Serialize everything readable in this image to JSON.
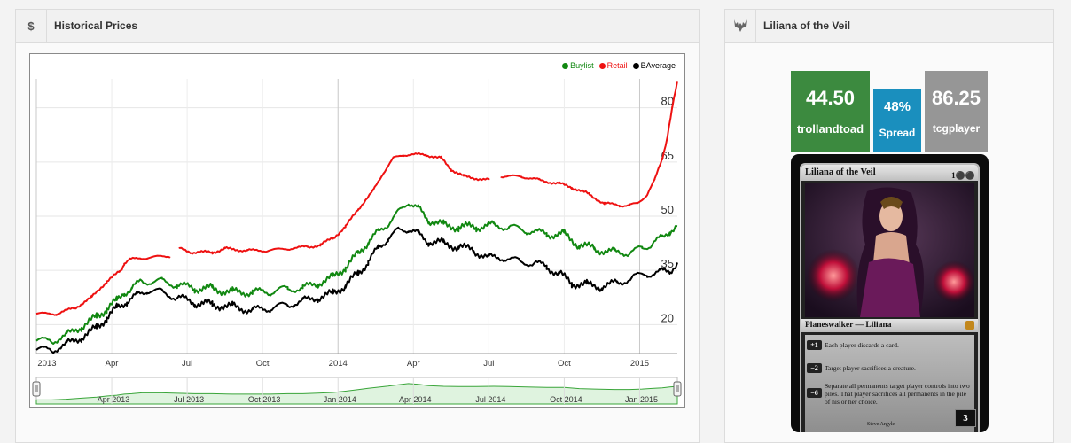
{
  "left_panel": {
    "icon": "$",
    "title": "Historical Prices"
  },
  "right_panel": {
    "title": "Liliana of the Veil",
    "icon": "wolf-head-icon"
  },
  "prices": {
    "buylist": {
      "value": "44.50",
      "label": "trollandtoad",
      "color": "#3c8a3f"
    },
    "spread": {
      "value": "48%",
      "label": "Spread",
      "color": "#1a8fbe"
    },
    "retail": {
      "value": "86.25",
      "label": "tcgplayer",
      "color": "#969696"
    }
  },
  "card": {
    "name": "Liliana of the Veil",
    "mana_cost": "1⚫⚫",
    "type_line": "Planeswalker — Liliana",
    "abilities": [
      {
        "cost": "+1",
        "text": "Each player discards a card."
      },
      {
        "cost": "−2",
        "text": "Target player sacrifices a creature."
      },
      {
        "cost": "−6",
        "text": "Separate all permanents target player controls into two piles. That player sacrifices all permanents in the pile of his or her choice."
      }
    ],
    "artist": "Steve Argyle",
    "loyalty": "3"
  },
  "chart_data": {
    "type": "line",
    "legend": [
      "Buylist",
      "Retail",
      "BAverage"
    ],
    "legend_placement": "top-right",
    "colors": {
      "Buylist": "#118811",
      "Retail": "#ee1111",
      "BAverage": "#000000"
    },
    "x_ticks": [
      "2013",
      "Apr",
      "Jul",
      "Oct",
      "2014",
      "Apr",
      "Jul",
      "Oct",
      "2015"
    ],
    "y_ticks": [
      20,
      35,
      50,
      65,
      80
    ],
    "ylim": [
      12,
      88
    ],
    "navigator_ticks": [
      "Apr 2013",
      "Jul 2013",
      "Oct 2013",
      "Jan 2014",
      "Apr 2014",
      "Jul 2014",
      "Oct 2014",
      "Jan 2015"
    ],
    "x_month_range": [
      0,
      25.5
    ],
    "series": [
      {
        "name": "Retail",
        "gaps": [
          [
            5.3,
            5.7
          ],
          [
            18.0,
            18.5
          ]
        ],
        "points": [
          [
            0,
            23
          ],
          [
            0.8,
            23
          ],
          [
            1.5,
            24.5
          ],
          [
            2.2,
            27.5
          ],
          [
            2.8,
            32
          ],
          [
            3.3,
            34.5
          ],
          [
            3.4,
            35.5
          ],
          [
            3.5,
            37
          ],
          [
            3.7,
            38
          ],
          [
            4.4,
            38.5
          ],
          [
            5.3,
            39
          ],
          [
            5.7,
            41
          ],
          [
            6.2,
            40
          ],
          [
            7,
            40
          ],
          [
            7.5,
            41
          ],
          [
            8.4,
            40.5
          ],
          [
            9.2,
            40.5
          ],
          [
            10,
            41
          ],
          [
            10.8,
            41.5
          ],
          [
            11.3,
            42
          ],
          [
            11.8,
            44
          ],
          [
            12.3,
            47
          ],
          [
            12.8,
            52
          ],
          [
            13.4,
            57
          ],
          [
            13.8,
            62
          ],
          [
            14.2,
            66
          ],
          [
            14.6,
            67
          ],
          [
            15.5,
            67
          ],
          [
            16.1,
            66
          ],
          [
            16.5,
            63
          ],
          [
            17,
            61
          ],
          [
            18,
            60
          ],
          [
            18.5,
            61
          ],
          [
            19.3,
            61
          ],
          [
            20,
            60
          ],
          [
            20.8,
            59
          ],
          [
            21.3,
            58
          ],
          [
            22,
            56
          ],
          [
            22.6,
            53.5
          ],
          [
            23.2,
            53
          ],
          [
            23.6,
            53
          ],
          [
            23.9,
            53.5
          ],
          [
            24.3,
            56
          ],
          [
            24.6,
            60
          ],
          [
            24.9,
            66
          ],
          [
            25.1,
            72
          ],
          [
            25.3,
            80
          ],
          [
            25.5,
            87
          ]
        ]
      },
      {
        "name": "Buylist",
        "points": [
          [
            0,
            15.5
          ],
          [
            0.6,
            15.5
          ],
          [
            1.2,
            17
          ],
          [
            1.8,
            19.5
          ],
          [
            2.4,
            22
          ],
          [
            2.8,
            24.5
          ],
          [
            3.2,
            26.5
          ],
          [
            3.5,
            29
          ],
          [
            3.8,
            30
          ],
          [
            4.2,
            32
          ],
          [
            5,
            32
          ],
          [
            5.6,
            31
          ],
          [
            6.3,
            30
          ],
          [
            7,
            30
          ],
          [
            7.8,
            29
          ],
          [
            8.6,
            29
          ],
          [
            9.3,
            29
          ],
          [
            10,
            30
          ],
          [
            10.6,
            30
          ],
          [
            11.2,
            31.5
          ],
          [
            11.8,
            33
          ],
          [
            12.3,
            36
          ],
          [
            12.8,
            39.5
          ],
          [
            13.2,
            43
          ],
          [
            13.6,
            45.5
          ],
          [
            14,
            48
          ],
          [
            14.4,
            51
          ],
          [
            14.8,
            54
          ],
          [
            15.2,
            52
          ],
          [
            15.6,
            49
          ],
          [
            16.2,
            47.5
          ],
          [
            16.8,
            47
          ],
          [
            17.5,
            47
          ],
          [
            18.2,
            47.5
          ],
          [
            18.8,
            47
          ],
          [
            19.5,
            46
          ],
          [
            20.3,
            45
          ],
          [
            21,
            45
          ],
          [
            21.6,
            42
          ],
          [
            22.2,
            41
          ],
          [
            23,
            40
          ],
          [
            23.6,
            40
          ],
          [
            24.1,
            41
          ],
          [
            24.5,
            42.5
          ],
          [
            24.9,
            44
          ],
          [
            25.2,
            46
          ],
          [
            25.5,
            47.5
          ]
        ]
      },
      {
        "name": "BAverage",
        "points": [
          [
            0,
            13
          ],
          [
            0.6,
            13
          ],
          [
            1.2,
            14.5
          ],
          [
            1.8,
            16.5
          ],
          [
            2.4,
            19
          ],
          [
            2.8,
            22
          ],
          [
            3.2,
            24.5
          ],
          [
            3.6,
            26.5
          ],
          [
            4,
            28
          ],
          [
            4.4,
            29.5
          ],
          [
            5,
            29
          ],
          [
            5.6,
            27.5
          ],
          [
            6.3,
            26
          ],
          [
            7,
            25.5
          ],
          [
            7.8,
            25
          ],
          [
            8.6,
            24
          ],
          [
            9.3,
            24.5
          ],
          [
            10,
            25.5
          ],
          [
            10.6,
            26.5
          ],
          [
            11.2,
            27.5
          ],
          [
            11.8,
            28.5
          ],
          [
            12.3,
            31
          ],
          [
            12.8,
            34
          ],
          [
            13.2,
            37.5
          ],
          [
            13.6,
            41
          ],
          [
            14,
            44
          ],
          [
            14.4,
            46
          ],
          [
            14.8,
            46.5
          ],
          [
            15.2,
            45
          ],
          [
            15.6,
            43
          ],
          [
            16.2,
            42.5
          ],
          [
            16.8,
            41.5
          ],
          [
            17.4,
            40.5
          ],
          [
            18,
            38.5
          ],
          [
            18.6,
            38.5
          ],
          [
            19.2,
            37.5
          ],
          [
            19.8,
            37
          ],
          [
            20.3,
            36
          ],
          [
            20.8,
            34
          ],
          [
            21.3,
            31.5
          ],
          [
            21.9,
            31
          ],
          [
            22.5,
            30.5
          ],
          [
            23.1,
            31.5
          ],
          [
            23.7,
            33
          ],
          [
            24.3,
            34
          ],
          [
            24.8,
            34.5
          ],
          [
            25.2,
            35
          ],
          [
            25.5,
            37
          ]
        ]
      }
    ]
  }
}
